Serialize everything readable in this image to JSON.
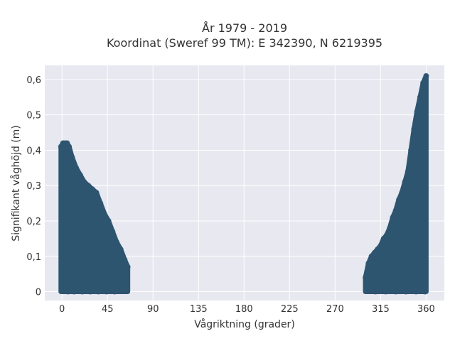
{
  "chart_data": {
    "type": "scatter",
    "title": "År 1979 - 2019",
    "subtitle": "Koordinat (Sweref 99 TM): E 342390, N 6219395",
    "xlabel": "Vågriktning (grader)",
    "ylabel": "Signifikant våghöjd (m)",
    "xlim": [
      -17,
      378
    ],
    "ylim": [
      -0.025,
      0.64
    ],
    "x_ticks": [
      0,
      45,
      90,
      135,
      180,
      225,
      270,
      315,
      360
    ],
    "x_tick_labels": [
      "0",
      "45",
      "90",
      "135",
      "180",
      "225",
      "270",
      "315",
      "360"
    ],
    "y_ticks": [
      0,
      0.1,
      0.2,
      0.3,
      0.4,
      0.5,
      0.6
    ],
    "y_tick_labels": [
      "0",
      "0,1",
      "0,2",
      "0,3",
      "0,4",
      "0,5",
      "0,6"
    ],
    "grid": true,
    "marker_color": "#2e5570",
    "plot_background": "#e8e8f0",
    "series": [
      {
        "envelope_x": [
          -1,
          1,
          3,
          5,
          7,
          10,
          14,
          18,
          22,
          26,
          30,
          34,
          38,
          42,
          46,
          50,
          54,
          58,
          62,
          65
        ],
        "envelope_y": [
          0.41,
          0.42,
          0.42,
          0.42,
          0.41,
          0.38,
          0.35,
          0.33,
          0.31,
          0.3,
          0.29,
          0.28,
          0.25,
          0.22,
          0.2,
          0.17,
          0.14,
          0.12,
          0.09,
          0.07
        ],
        "values": [
          [
            -1,
            0.41
          ],
          [
            1,
            0.42
          ],
          [
            3,
            0.42
          ],
          [
            5,
            0.42
          ],
          [
            7,
            0.41
          ],
          [
            10,
            0.38
          ],
          [
            14,
            0.35
          ],
          [
            18,
            0.33
          ],
          [
            22,
            0.31
          ],
          [
            26,
            0.3
          ],
          [
            30,
            0.29
          ],
          [
            34,
            0.28
          ],
          [
            38,
            0.25
          ],
          [
            42,
            0.22
          ],
          [
            46,
            0.2
          ],
          [
            50,
            0.17
          ],
          [
            54,
            0.14
          ],
          [
            58,
            0.12
          ],
          [
            62,
            0.09
          ],
          [
            65,
            0.07
          ],
          [
            6,
            0.0
          ],
          [
            12,
            0.0
          ],
          [
            20,
            0.0
          ],
          [
            28,
            0.0
          ],
          [
            36,
            0.0
          ],
          [
            44,
            0.0
          ],
          [
            52,
            0.0
          ],
          [
            60,
            0.02
          ]
        ]
      },
      {
        "envelope_x": [
          300,
          303,
          306,
          309,
          312,
          315,
          318,
          321,
          324,
          327,
          330,
          333,
          336,
          339,
          342,
          345,
          348,
          351,
          354,
          357,
          360
        ],
        "envelope_y": [
          0.04,
          0.08,
          0.1,
          0.11,
          0.12,
          0.13,
          0.15,
          0.16,
          0.18,
          0.21,
          0.23,
          0.26,
          0.28,
          0.31,
          0.34,
          0.4,
          0.46,
          0.51,
          0.55,
          0.59,
          0.61
        ],
        "values": [
          [
            300,
            0.04
          ],
          [
            303,
            0.08
          ],
          [
            306,
            0.1
          ],
          [
            309,
            0.11
          ],
          [
            312,
            0.12
          ],
          [
            315,
            0.13
          ],
          [
            318,
            0.15
          ],
          [
            321,
            0.16
          ],
          [
            324,
            0.18
          ],
          [
            327,
            0.21
          ],
          [
            330,
            0.23
          ],
          [
            333,
            0.26
          ],
          [
            336,
            0.28
          ],
          [
            339,
            0.31
          ],
          [
            342,
            0.34
          ],
          [
            345,
            0.4
          ],
          [
            348,
            0.46
          ],
          [
            351,
            0.51
          ],
          [
            354,
            0.55
          ],
          [
            357,
            0.59
          ],
          [
            360,
            0.61
          ],
          [
            310,
            0.0
          ],
          [
            320,
            0.0
          ],
          [
            330,
            0.0
          ],
          [
            340,
            0.0
          ],
          [
            350,
            0.0
          ],
          [
            359,
            0.0
          ]
        ]
      }
    ]
  }
}
